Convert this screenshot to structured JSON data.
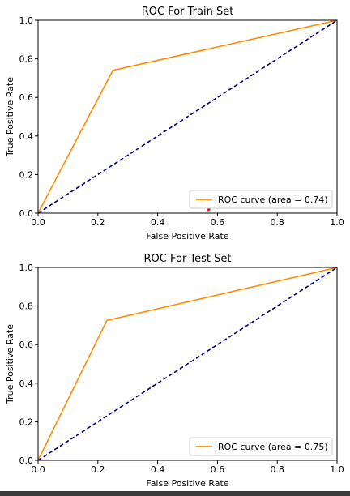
{
  "colors": {
    "roc": "#ff8c00",
    "diagonal": "#000080",
    "axis": "#000000",
    "background": "#ffffff",
    "marker": "#e31a1c"
  },
  "chart_data": [
    {
      "type": "line",
      "title": "ROC For Train Set",
      "xlabel": "False Positive Rate",
      "ylabel": "True Positive Rate",
      "xlim": [
        0.0,
        1.0
      ],
      "ylim": [
        0.0,
        1.0
      ],
      "xticks": [
        "0.0",
        "0.2",
        "0.4",
        "0.6",
        "0.8",
        "1.0"
      ],
      "yticks": [
        "0.0",
        "0.2",
        "0.4",
        "0.6",
        "0.8",
        "1.0"
      ],
      "grid": false,
      "legend_position": "lower right",
      "series": [
        {
          "name": "ROC curve (area = 0.74)",
          "color": "#ff8c00",
          "style": "solid",
          "x": [
            0.0,
            0.25,
            1.0
          ],
          "y": [
            0.0,
            0.74,
            1.0
          ]
        },
        {
          "color": "#000080",
          "style": "dashed",
          "x": [
            0.0,
            1.0
          ],
          "y": [
            0.0,
            1.0
          ]
        }
      ],
      "marker_point": {
        "x": 0.57,
        "y": 0.02,
        "color": "#e31a1c"
      }
    },
    {
      "type": "line",
      "title": "ROC For Test Set",
      "xlabel": "False Positive Rate",
      "ylabel": "True Positive Rate",
      "xlim": [
        0.0,
        1.0
      ],
      "ylim": [
        0.0,
        1.0
      ],
      "xticks": [
        "0.0",
        "0.2",
        "0.4",
        "0.6",
        "0.8",
        "1.0"
      ],
      "yticks": [
        "0.0",
        "0.2",
        "0.4",
        "0.6",
        "0.8",
        "1.0"
      ],
      "grid": false,
      "legend_position": "lower right",
      "series": [
        {
          "name": "ROC curve (area = 0.75)",
          "color": "#ff8c00",
          "style": "solid",
          "x": [
            0.0,
            0.23,
            1.0
          ],
          "y": [
            0.0,
            0.725,
            1.0
          ]
        },
        {
          "color": "#000080",
          "style": "dashed",
          "x": [
            0.0,
            1.0
          ],
          "y": [
            0.0,
            1.0
          ]
        }
      ]
    }
  ]
}
